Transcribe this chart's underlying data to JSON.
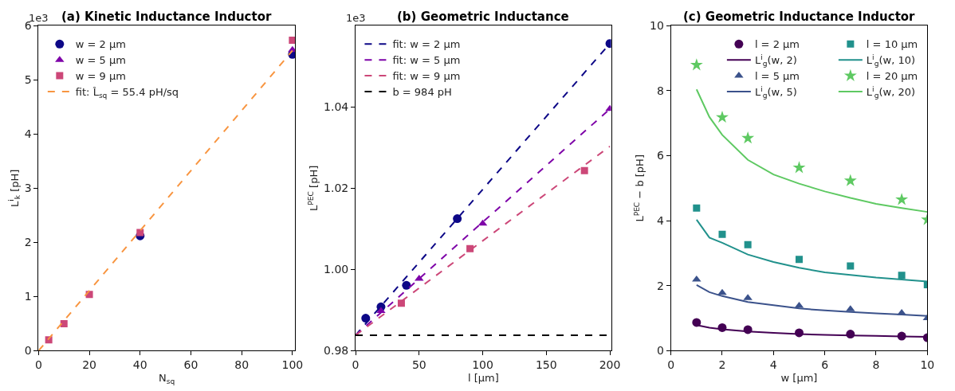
{
  "chart_data": [
    {
      "type": "scatter",
      "title": "(a) Kinetic Inductance Inductor",
      "xlabel": "N$_{sq}$",
      "ylabel": "L$^{i}$$_{k}$ [pH]",
      "annotations": [
        "1e3"
      ],
      "grid": false,
      "legend": "top left",
      "x": [
        4,
        10,
        20,
        40,
        100
      ],
      "xlim": [
        0,
        101
      ],
      "xticks": [
        0,
        20,
        40,
        60,
        80,
        100
      ],
      "ylim": [
        0,
        6
      ],
      "yticks": [
        0,
        1,
        2,
        3,
        4,
        5,
        6
      ],
      "series": [
        {
          "name": "w = 2 μm",
          "color": "#0d0887",
          "marker": "circle",
          "values": [
            null,
            null,
            null,
            2.12,
            5.47
          ]
        },
        {
          "name": "w = 5 μm",
          "color": "#7e03a8",
          "marker": "triangle",
          "values": [
            null,
            null,
            null,
            null,
            5.55
          ]
        },
        {
          "name": "w = 9 μm",
          "color": "#cc4778",
          "marker": "square",
          "values": [
            0.2,
            0.5,
            1.04,
            2.18,
            5.73
          ]
        },
        {
          "name": "fit: L̂$_{sq}$ = 55.4 pH/sq",
          "type": "line",
          "line_style": "dashed",
          "color": "#f89540",
          "x": [
            0,
            100
          ],
          "values": [
            0,
            5.54
          ]
        }
      ]
    },
    {
      "type": "scatter",
      "title": "(b) Geometric Inductance",
      "xlabel": "l [μm]",
      "ylabel": "L$^{PEC}$ [pH]",
      "annotations": [
        "1e3"
      ],
      "grid": false,
      "legend": "top left",
      "xlim": [
        0,
        201
      ],
      "xticks": [
        0,
        50,
        100,
        150,
        200
      ],
      "ylim": [
        0.98,
        1.06
      ],
      "yticks": [
        {
          "value": 0.98,
          "label": "0.98"
        },
        {
          "value": 1.0,
          "label": "1.00"
        },
        {
          "value": 1.02,
          "label": "1.02"
        },
        {
          "value": 1.04,
          "label": "1.04"
        }
      ],
      "ref_lines": [
        {
          "axis": "y",
          "value": 0.9838,
          "label": "b = 984 pH",
          "color": "#000000",
          "line_style": "dashed"
        }
      ],
      "series": [
        {
          "color": "#0d0887",
          "marker": "circle",
          "x": [
            8,
            20,
            40,
            80,
            200
          ],
          "values": [
            0.988,
            0.9908,
            0.9961,
            1.0125,
            1.0556
          ]
        },
        {
          "color": "#7e03a8",
          "marker": "triangle",
          "x": [
            20,
            50,
            100,
            200
          ],
          "values": [
            0.9898,
            0.9977,
            1.0113,
            1.0395
          ]
        },
        {
          "color": "#cc4778",
          "marker": "square",
          "x": [
            36,
            90,
            180
          ],
          "values": [
            0.9917,
            1.0051,
            1.0243
          ]
        },
        {
          "name": "fit: w = 2 μm",
          "type": "line",
          "line_style": "dashed",
          "color": "#0d0887",
          "x": [
            0,
            200
          ],
          "values": [
            0.9838,
            1.0556
          ]
        },
        {
          "name": "fit: w = 5 μm",
          "type": "line",
          "line_style": "dashed",
          "color": "#7e03a8",
          "x": [
            0,
            200
          ],
          "values": [
            0.9838,
            1.0395
          ]
        },
        {
          "name": "fit: w = 9 μm",
          "type": "line",
          "line_style": "dashed",
          "color": "#cc4778",
          "x": [
            0,
            200
          ],
          "values": [
            0.9838,
            1.0303
          ]
        }
      ]
    },
    {
      "type": "scatter",
      "title": "(c) Geometric Inductance Inductor",
      "xlabel": "w [μm]",
      "ylabel": "L$^{PEC}$ − b [pH]",
      "grid": false,
      "legend": "top right",
      "xlim": [
        0,
        10
      ],
      "xticks": [
        0,
        2,
        4,
        6,
        8,
        10
      ],
      "ylim": [
        0,
        10
      ],
      "yticks": [
        0,
        2,
        4,
        6,
        8,
        10
      ],
      "series": [
        {
          "name": "l = 2 μm",
          "color": "#440154",
          "marker": "circle",
          "x": [
            1,
            2,
            3,
            5,
            7,
            9,
            10
          ],
          "values": [
            0.87,
            0.71,
            0.65,
            0.55,
            0.51,
            0.45,
            0.4
          ]
        },
        {
          "name": "L$^{i}$$_{g}$(w, 2)",
          "type": "line",
          "color": "#440154",
          "x": [
            1,
            1.5,
            2,
            3,
            4,
            5,
            6,
            7,
            8,
            9,
            10
          ],
          "values": [
            0.79,
            0.71,
            0.66,
            0.59,
            0.55,
            0.51,
            0.49,
            0.47,
            0.46,
            0.44,
            0.43
          ]
        },
        {
          "name": "l = 5 μm",
          "color": "#3b528b",
          "marker": "triangle",
          "x": [
            1,
            2,
            3,
            5,
            7,
            9,
            10
          ],
          "values": [
            2.19,
            1.78,
            1.62,
            1.38,
            1.28,
            1.16,
            1.0
          ]
        },
        {
          "name": "L$^{i}$$_{g}$(w, 5)",
          "type": "line",
          "color": "#3b528b",
          "x": [
            1,
            1.5,
            2,
            3,
            4,
            5,
            6,
            7,
            8,
            9,
            10
          ],
          "values": [
            2.02,
            1.8,
            1.68,
            1.5,
            1.4,
            1.3,
            1.24,
            1.19,
            1.15,
            1.11,
            1.07
          ]
        },
        {
          "name": "l = 10 μm",
          "color": "#21918c",
          "marker": "square",
          "x": [
            1,
            2,
            3,
            5,
            7,
            9,
            10
          ],
          "values": [
            4.39,
            3.58,
            3.26,
            2.81,
            2.61,
            2.32,
            2.03
          ]
        },
        {
          "name": "L$^{i}$$_{g}$(w, 10)",
          "type": "line",
          "color": "#21918c",
          "x": [
            1,
            1.5,
            2,
            3,
            4,
            5,
            6,
            7,
            8,
            9,
            10
          ],
          "values": [
            4.03,
            3.48,
            3.32,
            2.96,
            2.73,
            2.55,
            2.41,
            2.33,
            2.25,
            2.19,
            2.13
          ]
        },
        {
          "name": "l = 20 μm",
          "color": "#5ec962",
          "marker": "star",
          "x": [
            1,
            2,
            3,
            5,
            7,
            9,
            10
          ],
          "values": [
            8.79,
            7.18,
            6.54,
            5.63,
            5.23,
            4.65,
            4.03
          ]
        },
        {
          "name": "L$^{i}$$_{g}$(w, 20)",
          "type": "line",
          "color": "#5ec962",
          "x": [
            1,
            1.5,
            2,
            3,
            4,
            5,
            6,
            7,
            8,
            9,
            10
          ],
          "values": [
            8.04,
            7.19,
            6.64,
            5.87,
            5.42,
            5.14,
            4.9,
            4.7,
            4.52,
            4.39,
            4.27
          ]
        }
      ]
    }
  ]
}
